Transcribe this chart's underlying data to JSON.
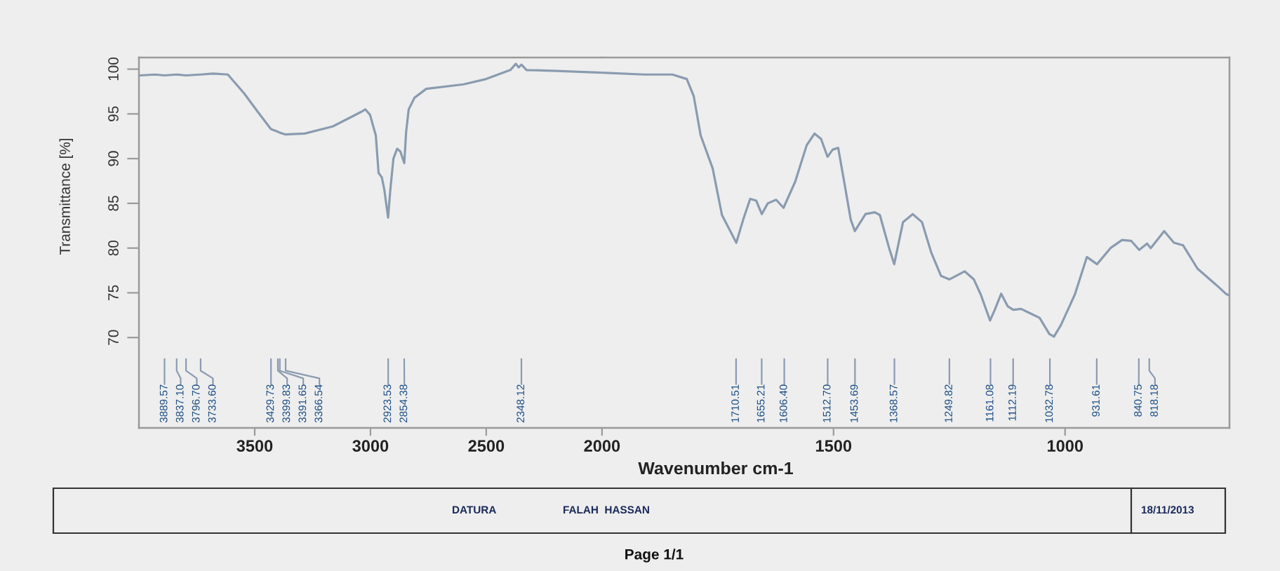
{
  "chart_data": [
    {
      "type": "line",
      "ylabel": "Transmittance [%]",
      "color": "#8a9bb0",
      "x": [
        3995,
        3930,
        3890,
        3837,
        3797,
        3734,
        3680,
        3616,
        3546,
        3486,
        3430,
        3400,
        3392,
        3367,
        3284,
        3163,
        3042,
        3022,
        3002,
        2977,
        2965,
        2951,
        2940,
        2924,
        2915,
        2901,
        2885,
        2871,
        2854,
        2846,
        2835,
        2810,
        2759,
        2598,
        2500,
        2396,
        2372,
        2360,
        2348,
        2326,
        2195,
        2000
      ],
      "values": [
        99.3,
        99.4,
        99.3,
        99.4,
        99.3,
        99.4,
        99.5,
        99.4,
        97.3,
        95.2,
        93.3,
        93.0,
        92.9,
        92.7,
        92.8,
        93.6,
        95.2,
        95.5,
        94.9,
        92.6,
        88.4,
        87.9,
        86.5,
        83.4,
        86.3,
        90.0,
        91.1,
        90.8,
        89.5,
        93.0,
        95.5,
        96.8,
        97.8,
        98.3,
        98.9,
        99.9,
        100.6,
        100.2,
        100.5,
        99.9,
        99.8,
        99.6
      ],
      "xlim": [
        4000,
        2000
      ],
      "ylim": [
        59.9,
        101.3
      ],
      "xticks": [
        3500,
        3000,
        2500,
        2000
      ],
      "yticks": [
        70,
        75,
        80,
        85,
        90,
        95,
        100
      ],
      "annotations": [
        {
          "text": "3889.57",
          "x": 3889.57
        },
        {
          "text": "3837.10",
          "x": 3837.1
        },
        {
          "text": "3796.70",
          "x": 3796.7
        },
        {
          "text": "3733.60",
          "x": 3733.6
        },
        {
          "text": "3429.73",
          "x": 3429.73
        },
        {
          "text": "3399.83",
          "x": 3399.83
        },
        {
          "text": "3391.65",
          "x": 3391.65
        },
        {
          "text": "3366.54",
          "x": 3366.54
        },
        {
          "text": "2923.53",
          "x": 2923.53
        },
        {
          "text": "2854.38",
          "x": 2854.38
        },
        {
          "text": "2348.12",
          "x": 2348.12
        },
        "DATURA",
        "FALAH  HASSAN",
        "18/11/2013",
        "Page 1/1"
      ]
    },
    {
      "type": "line",
      "xlabel": "Wavenumber cm-1",
      "color": "#8a9bb0",
      "x": [
        2000,
        1909,
        1848,
        1817,
        1802,
        1787,
        1761,
        1741,
        1710,
        1695,
        1680,
        1667,
        1655,
        1642,
        1624,
        1608,
        1583,
        1558,
        1541,
        1527,
        1513,
        1502,
        1490,
        1477,
        1463,
        1454,
        1431,
        1411,
        1400,
        1380,
        1369,
        1350,
        1329,
        1309,
        1289,
        1268,
        1250,
        1217,
        1197,
        1182,
        1162,
        1151,
        1138,
        1124,
        1112,
        1095,
        1075,
        1055,
        1034,
        1024,
        1009,
        979,
        953,
        931,
        902,
        877,
        857,
        840,
        823,
        815,
        786,
        765,
        745,
        714,
        674,
        653,
        645
      ],
      "values": [
        99.6,
        99.4,
        99.4,
        98.9,
        97.0,
        92.6,
        88.9,
        83.7,
        80.6,
        83.2,
        85.5,
        85.3,
        83.8,
        85.0,
        85.4,
        84.5,
        87.4,
        91.5,
        92.8,
        92.2,
        90.2,
        91.0,
        91.2,
        87.4,
        83.2,
        81.9,
        83.8,
        84.0,
        83.7,
        80.0,
        78.2,
        82.9,
        83.8,
        82.9,
        79.5,
        76.9,
        76.5,
        77.4,
        76.5,
        74.8,
        71.9,
        73.2,
        74.9,
        73.5,
        73.1,
        73.2,
        72.7,
        72.2,
        70.4,
        70.1,
        71.4,
        74.8,
        79.0,
        78.2,
        80.0,
        80.9,
        80.8,
        79.8,
        80.5,
        80.0,
        81.9,
        80.6,
        80.3,
        77.7,
        75.9,
        74.9,
        74.7
      ],
      "xlim": [
        2000,
        645
      ],
      "ylim": [
        59.9,
        101.3
      ],
      "xticks": [
        1500,
        1000
      ],
      "tick_labels": "x",
      "annotations": [
        {
          "text": "1710.51",
          "x": 1710.51
        },
        {
          "text": "1655.21",
          "x": 1655.21
        },
        {
          "text": "1606.40",
          "x": 1606.4
        },
        {
          "text": "1512.70",
          "x": 1512.7
        },
        {
          "text": "1453.69",
          "x": 1453.69
        },
        {
          "text": "1368.57",
          "x": 1368.57
        },
        {
          "text": "1249.82",
          "x": 1249.82
        },
        {
          "text": "1161.08",
          "x": 1161.08
        },
        {
          "text": "1112.19",
          "x": 1112.19
        },
        {
          "text": "1032.78",
          "x": 1032.78
        },
        {
          "text": "931.61",
          "x": 931.61
        },
        {
          "text": "840.75",
          "x": 840.75
        },
        {
          "text": "818.18",
          "x": 818.18
        }
      ]
    }
  ]
}
